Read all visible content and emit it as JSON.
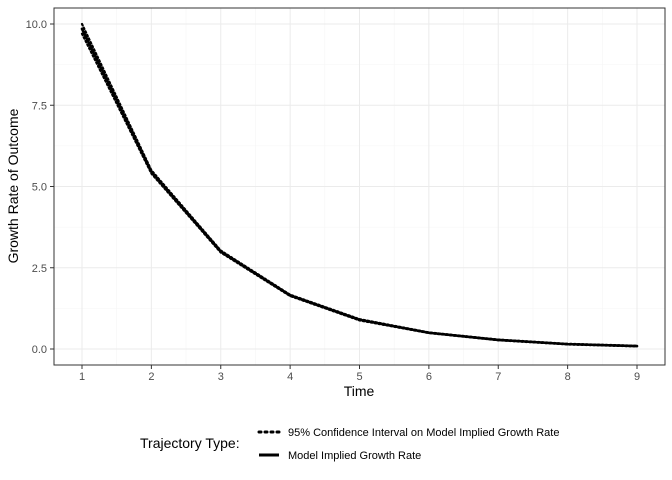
{
  "chart_data": {
    "type": "line",
    "title": "",
    "xlabel": "Time",
    "ylabel": "Growth Rate of Outcome",
    "xlim": [
      1,
      9
    ],
    "ylim": [
      0,
      10
    ],
    "x_ticks": [
      "1",
      "2",
      "3",
      "4",
      "5",
      "6",
      "7",
      "8",
      "9"
    ],
    "y_ticks": [
      "0.0",
      "2.5",
      "5.0",
      "7.5",
      "10.0"
    ],
    "grid": true,
    "legend": {
      "title": "Trajectory Type:",
      "placement": "bottom",
      "entries": [
        {
          "label": "95% Confidence Interval on Model Implied Growth Rate",
          "style": "dotted"
        },
        {
          "label": "Model Implied Growth Rate",
          "style": "solid"
        }
      ]
    },
    "series": [
      {
        "name": "Model Implied Growth Rate",
        "style": "solid",
        "x": [
          1,
          2,
          3,
          4,
          5,
          6,
          7,
          8,
          9
        ],
        "y": [
          9.85,
          5.45,
          3.0,
          1.65,
          0.9,
          0.5,
          0.28,
          0.15,
          0.09
        ]
      },
      {
        "name": "95% Confidence Interval on Model Implied Growth Rate (upper)",
        "style": "dotted",
        "x": [
          1,
          2,
          3,
          4,
          5,
          6,
          7,
          8,
          9
        ],
        "y": [
          10.0,
          5.5,
          3.03,
          1.67,
          0.92,
          0.51,
          0.29,
          0.16,
          0.1
        ]
      },
      {
        "name": "95% Confidence Interval on Model Implied Growth Rate (lower)",
        "style": "dotted",
        "x": [
          1,
          2,
          3,
          4,
          5,
          6,
          7,
          8,
          9
        ],
        "y": [
          9.7,
          5.4,
          2.97,
          1.63,
          0.88,
          0.49,
          0.27,
          0.14,
          0.08
        ]
      }
    ],
    "colors": {
      "line": "#000000",
      "grid_major": "#ebebeb",
      "grid_minor": "#f5f5f5",
      "panel_border": "#333333",
      "tick_text": "#4d4d4d"
    }
  }
}
